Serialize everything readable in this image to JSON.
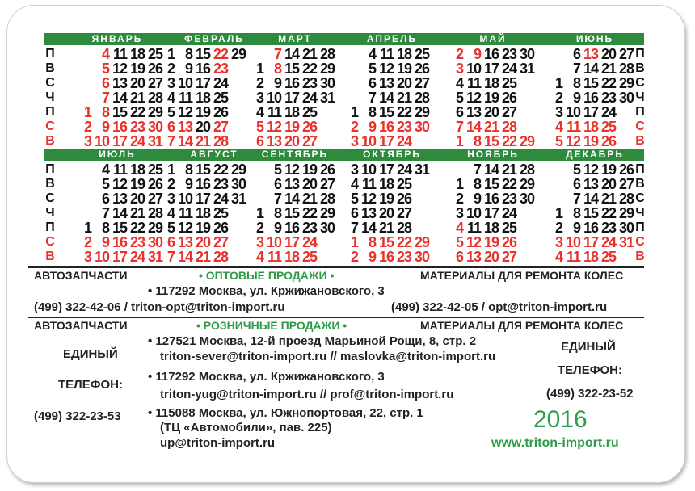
{
  "days": [
    "П",
    "В",
    "С",
    "Ч",
    "П",
    "С",
    "В"
  ],
  "day_colors": [
    "#111",
    "#111",
    "#111",
    "#111",
    "#111",
    "#e8322b",
    "#e8322b"
  ],
  "colors": {
    "green": "#2e8b3e",
    "red": "#e8322b"
  },
  "months": [
    {
      "name": "ЯНВАРЬ",
      "rows": [
        [
          null,
          4,
          11,
          18,
          25
        ],
        [
          null,
          5,
          12,
          19,
          26
        ],
        [
          null,
          6,
          13,
          20,
          27
        ],
        [
          null,
          7,
          14,
          21,
          28
        ],
        [
          1,
          8,
          15,
          22,
          29
        ],
        [
          2,
          9,
          16,
          23,
          30
        ],
        [
          3,
          10,
          17,
          24,
          31
        ]
      ],
      "red": [
        1,
        2,
        3,
        4,
        5,
        6,
        7,
        8,
        9,
        10,
        16,
        17,
        23,
        24,
        30,
        31
      ]
    },
    {
      "name": "ФЕВРАЛЬ",
      "rows": [
        [
          1,
          8,
          15,
          22,
          29
        ],
        [
          2,
          9,
          16,
          23
        ],
        [
          3,
          10,
          17,
          24
        ],
        [
          4,
          11,
          18,
          25
        ],
        [
          5,
          12,
          19,
          26
        ],
        [
          6,
          13,
          20,
          27
        ],
        [
          7,
          14,
          21,
          28
        ]
      ],
      "red": [
        6,
        7,
        13,
        14,
        21,
        22,
        23,
        27,
        28
      ]
    },
    {
      "name": "МАРТ",
      "rows": [
        [
          null,
          7,
          14,
          21,
          28
        ],
        [
          1,
          8,
          15,
          22,
          29
        ],
        [
          2,
          9,
          16,
          23,
          30
        ],
        [
          3,
          10,
          17,
          24,
          31
        ],
        [
          4,
          11,
          18,
          25
        ],
        [
          5,
          12,
          19,
          26
        ],
        [
          6,
          13,
          20,
          27
        ]
      ],
      "red": [
        5,
        6,
        7,
        8,
        12,
        13,
        19,
        20,
        26,
        27
      ]
    },
    {
      "name": "АПРЕЛЬ",
      "rows": [
        [
          null,
          4,
          11,
          18,
          25
        ],
        [
          null,
          5,
          12,
          19,
          26
        ],
        [
          null,
          6,
          13,
          20,
          27
        ],
        [
          null,
          7,
          14,
          21,
          28
        ],
        [
          1,
          8,
          15,
          22,
          29
        ],
        [
          2,
          9,
          16,
          23,
          30
        ],
        [
          3,
          10,
          17,
          24
        ]
      ],
      "red": [
        2,
        3,
        9,
        10,
        16,
        17,
        23,
        24,
        30
      ]
    },
    {
      "name": "МАЙ",
      "rows": [
        [
          2,
          9,
          16,
          23,
          30
        ],
        [
          3,
          10,
          17,
          24,
          31
        ],
        [
          4,
          11,
          18,
          25
        ],
        [
          5,
          12,
          19,
          26
        ],
        [
          6,
          13,
          20,
          27
        ],
        [
          7,
          14,
          21,
          28
        ],
        [
          1,
          8,
          15,
          22,
          29
        ]
      ],
      "red": [
        1,
        2,
        3,
        7,
        8,
        9,
        14,
        15,
        21,
        22,
        28,
        29
      ]
    },
    {
      "name": "ИЮНЬ",
      "rows": [
        [
          null,
          6,
          13,
          20,
          27
        ],
        [
          null,
          7,
          14,
          21,
          28
        ],
        [
          1,
          8,
          15,
          22,
          29
        ],
        [
          2,
          9,
          16,
          23,
          30
        ],
        [
          3,
          10,
          17,
          24
        ],
        [
          4,
          11,
          18,
          25
        ],
        [
          5,
          12,
          19,
          26
        ]
      ],
      "red": [
        4,
        5,
        11,
        12,
        13,
        18,
        19,
        25,
        26
      ]
    },
    {
      "name": "ИЮЛЬ",
      "rows": [
        [
          null,
          4,
          11,
          18,
          25
        ],
        [
          null,
          5,
          12,
          19,
          26
        ],
        [
          null,
          6,
          13,
          20,
          27
        ],
        [
          null,
          7,
          14,
          21,
          28
        ],
        [
          1,
          8,
          15,
          22,
          29
        ],
        [
          2,
          9,
          16,
          23,
          30
        ],
        [
          3,
          10,
          17,
          24,
          31
        ]
      ],
      "red": [
        2,
        3,
        9,
        10,
        16,
        17,
        23,
        24,
        30,
        31
      ]
    },
    {
      "name": "АВГУСТ",
      "rows": [
        [
          1,
          8,
          15,
          22,
          29
        ],
        [
          2,
          9,
          16,
          23,
          30
        ],
        [
          3,
          10,
          17,
          24,
          31
        ],
        [
          4,
          11,
          18,
          25
        ],
        [
          5,
          12,
          19,
          26
        ],
        [
          6,
          13,
          20,
          27
        ],
        [
          7,
          14,
          21,
          28
        ]
      ],
      "red": [
        6,
        7,
        13,
        14,
        20,
        21,
        27,
        28
      ]
    },
    {
      "name": "СЕНТЯБРЬ",
      "rows": [
        [
          null,
          5,
          12,
          19,
          26
        ],
        [
          null,
          6,
          13,
          20,
          27
        ],
        [
          null,
          7,
          14,
          21,
          28
        ],
        [
          1,
          8,
          15,
          22,
          29
        ],
        [
          2,
          9,
          16,
          23,
          30
        ],
        [
          3,
          10,
          17,
          24
        ],
        [
          4,
          11,
          18,
          25
        ]
      ],
      "red": [
        3,
        4,
        10,
        11,
        17,
        18,
        24,
        25
      ]
    },
    {
      "name": "ОКТЯБРЬ",
      "rows": [
        [
          3,
          10,
          17,
          24,
          31
        ],
        [
          4,
          11,
          18,
          25
        ],
        [
          5,
          12,
          19,
          26
        ],
        [
          6,
          13,
          20,
          27
        ],
        [
          7,
          14,
          21,
          28
        ],
        [
          1,
          8,
          15,
          22,
          29
        ],
        [
          2,
          9,
          16,
          23,
          30
        ]
      ],
      "red": [
        1,
        2,
        8,
        9,
        15,
        16,
        22,
        23,
        29,
        30
      ]
    },
    {
      "name": "НОЯБРЬ",
      "rows": [
        [
          null,
          7,
          14,
          21,
          28
        ],
        [
          1,
          8,
          15,
          22,
          29
        ],
        [
          2,
          9,
          16,
          23,
          30
        ],
        [
          3,
          10,
          17,
          24
        ],
        [
          4,
          11,
          18,
          25
        ],
        [
          5,
          12,
          19,
          26
        ],
        [
          6,
          13,
          20,
          27
        ]
      ],
      "red": [
        4,
        5,
        6,
        12,
        13,
        19,
        20,
        26,
        27
      ]
    },
    {
      "name": "ДЕКАБРЬ",
      "rows": [
        [
          null,
          5,
          12,
          19,
          26
        ],
        [
          null,
          6,
          13,
          20,
          27
        ],
        [
          null,
          7,
          14,
          21,
          28
        ],
        [
          1,
          8,
          15,
          22,
          29
        ],
        [
          2,
          9,
          16,
          23,
          30
        ],
        [
          3,
          10,
          17,
          24,
          31
        ],
        [
          4,
          11,
          18,
          25
        ]
      ],
      "red": [
        3,
        4,
        10,
        11,
        17,
        18,
        24,
        25,
        31
      ]
    }
  ],
  "wholesale": {
    "left_heading": "АВТОЗАПЧАСТИ",
    "title": "•  ОПТОВЫЕ ПРОДАЖИ  •",
    "right_heading": "МАТЕРИАЛЫ ДЛЯ РЕМОНТА КОЛЕС",
    "address": "• 117292 Москва, ул. Кржижановского, 3",
    "left_contact": "(499) 322-42-06 / triton-opt@triton-import.ru",
    "right_contact": "(499) 322-42-05 / opt@triton-import.ru"
  },
  "retail": {
    "left_heading": "АВТОЗАПЧАСТИ",
    "title": "•  РОЗНИЧНЫЕ ПРОДАЖИ  •",
    "right_heading": "МАТЕРИАЛЫ ДЛЯ РЕМОНТА КОЛЕС",
    "left_single": "ЕДИНЫЙ",
    "left_phone_label": "ТЕЛЕФОН:",
    "left_phone": "(499) 322-23-53",
    "right_single": "ЕДИНЫЙ",
    "right_phone_label": "ТЕЛЕФОН:",
    "right_phone": "(499) 322-23-52",
    "addresses": [
      "• 127521 Москва, 12-й проезд Марьиной Рощи, 8, стр. 2",
      "triton-sever@triton-import.ru // maslovka@triton-import.ru",
      "• 117292 Москва, ул. Кржижановского, 3",
      "triton-yug@triton-import.ru // prof@triton-import.ru",
      "• 115088 Москва, ул. Южнопортовая, 22, стр. 1",
      "(ТЦ «Автомобили», пав. 225)",
      "up@triton-import.ru"
    ]
  },
  "year": "2016",
  "website": "www.triton-import.ru"
}
